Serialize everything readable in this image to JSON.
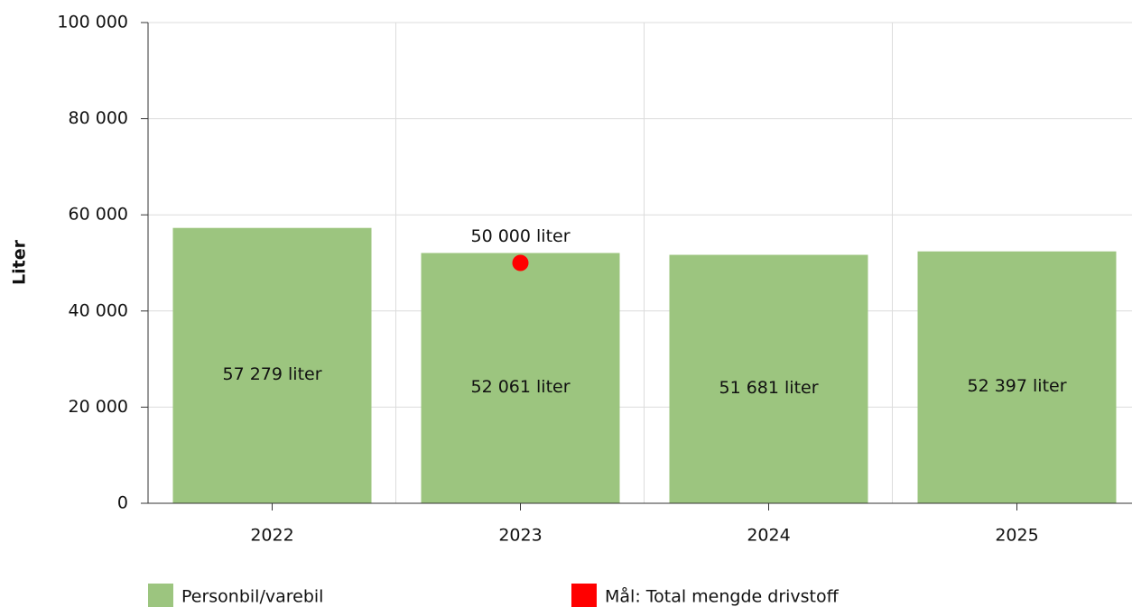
{
  "chart_data": {
    "type": "bar",
    "y_label": "Liter",
    "categories": [
      "2022",
      "2023",
      "2024",
      "2025"
    ],
    "series": [
      {
        "name": "Personbil/varebil",
        "color": "#9cc57f",
        "values": [
          57279,
          52061,
          51681,
          52397
        ],
        "value_labels": [
          "57 279 liter",
          "52 061 liter",
          "51 681 liter",
          "52 397 liter"
        ]
      },
      {
        "name": "Mål: Total mengde drivstoff",
        "type": "scatter",
        "color": "#ff0000",
        "values": [
          null,
          50000,
          null,
          null
        ],
        "value_labels": [
          null,
          "50 000 liter",
          null,
          null
        ]
      }
    ],
    "ylim": [
      0,
      100000
    ],
    "yticks": [
      0,
      {
        "value": 20000,
        "label": "20 000"
      },
      {
        "value": 40000,
        "label": "40 000"
      },
      {
        "value": 60000,
        "label": "60 000"
      },
      {
        "value": 80000,
        "label": "80 000"
      },
      {
        "value": 100000,
        "label": "100 000"
      }
    ],
    "grid": true,
    "legend": "bottom"
  }
}
